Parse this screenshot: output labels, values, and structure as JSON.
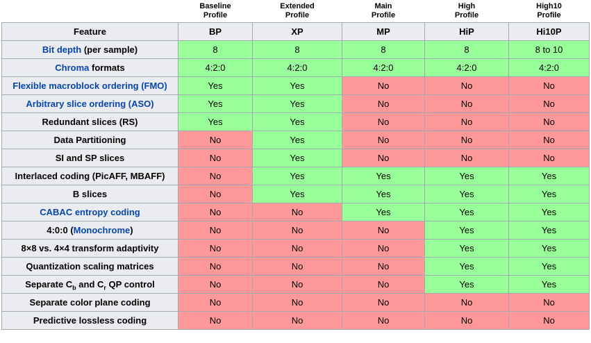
{
  "colors": {
    "yes_bg": "#99ff99",
    "no_bg": "#ff9999",
    "header_bg": "#eaecf0",
    "border": "#a2a9b1",
    "link": "#0645ad",
    "text": "#000000"
  },
  "feature_header": "Feature",
  "profiles": [
    {
      "name": "Baseline\nProfile",
      "abbr": "BP"
    },
    {
      "name": "Extended\nProfile",
      "abbr": "XP"
    },
    {
      "name": "Main\nProfile",
      "abbr": "MP"
    },
    {
      "name": "High\nProfile",
      "abbr": "HiP"
    },
    {
      "name": "High10\nProfile",
      "abbr": "Hi10P"
    }
  ],
  "rows": [
    {
      "label": [
        {
          "t": "Bit depth",
          "link": true
        },
        {
          "t": " (per sample)"
        }
      ],
      "values": [
        "8",
        "8",
        "8",
        "8",
        "8 to 10"
      ]
    },
    {
      "label": [
        {
          "t": "Chroma",
          "link": true
        },
        {
          "t": " formats"
        }
      ],
      "values": [
        "4:2:0",
        "4:2:0",
        "4:2:0",
        "4:2:0",
        "4:2:0"
      ]
    },
    {
      "label": [
        {
          "t": "Flexible macroblock ordering (FMO)",
          "link": true
        }
      ],
      "values": [
        "Yes",
        "Yes",
        "No",
        "No",
        "No"
      ]
    },
    {
      "label": [
        {
          "t": "Arbitrary slice ordering (ASO)",
          "link": true
        }
      ],
      "values": [
        "Yes",
        "Yes",
        "No",
        "No",
        "No"
      ]
    },
    {
      "label": [
        {
          "t": "Redundant slices (RS)"
        }
      ],
      "values": [
        "Yes",
        "Yes",
        "No",
        "No",
        "No"
      ]
    },
    {
      "label": [
        {
          "t": "Data Partitioning"
        }
      ],
      "values": [
        "No",
        "Yes",
        "No",
        "No",
        "No"
      ]
    },
    {
      "label": [
        {
          "t": "SI and SP slices"
        }
      ],
      "values": [
        "No",
        "Yes",
        "No",
        "No",
        "No"
      ]
    },
    {
      "label": [
        {
          "t": "Interlaced coding (PicAFF, MBAFF)"
        }
      ],
      "values": [
        "No",
        "Yes",
        "Yes",
        "Yes",
        "Yes"
      ]
    },
    {
      "label": [
        {
          "t": "B slices"
        }
      ],
      "values": [
        "No",
        "Yes",
        "Yes",
        "Yes",
        "Yes"
      ]
    },
    {
      "label": [
        {
          "t": "CABAC entropy coding",
          "link": true
        }
      ],
      "values": [
        "No",
        "No",
        "Yes",
        "Yes",
        "Yes"
      ]
    },
    {
      "label": [
        {
          "t": "4:0:0 ("
        },
        {
          "t": "Monochrome",
          "link": true
        },
        {
          "t": ")"
        }
      ],
      "values": [
        "No",
        "No",
        "No",
        "Yes",
        "Yes"
      ]
    },
    {
      "label": [
        {
          "t": "8×8 vs. 4×4 transform adaptivity"
        }
      ],
      "values": [
        "No",
        "No",
        "No",
        "Yes",
        "Yes"
      ]
    },
    {
      "label": [
        {
          "t": "Quantization scaling matrices"
        }
      ],
      "values": [
        "No",
        "No",
        "No",
        "Yes",
        "Yes"
      ]
    },
    {
      "label": [
        {
          "t": "Separate C"
        },
        {
          "t": "b",
          "sub": true
        },
        {
          "t": " and C"
        },
        {
          "t": "r",
          "sub": true
        },
        {
          "t": " QP control"
        }
      ],
      "values": [
        "No",
        "No",
        "No",
        "Yes",
        "Yes"
      ]
    },
    {
      "label": [
        {
          "t": "Separate color plane coding"
        }
      ],
      "values": [
        "No",
        "No",
        "No",
        "No",
        "No"
      ]
    },
    {
      "label": [
        {
          "t": "Predictive lossless coding"
        }
      ],
      "values": [
        "No",
        "No",
        "No",
        "No",
        "No"
      ]
    }
  ]
}
